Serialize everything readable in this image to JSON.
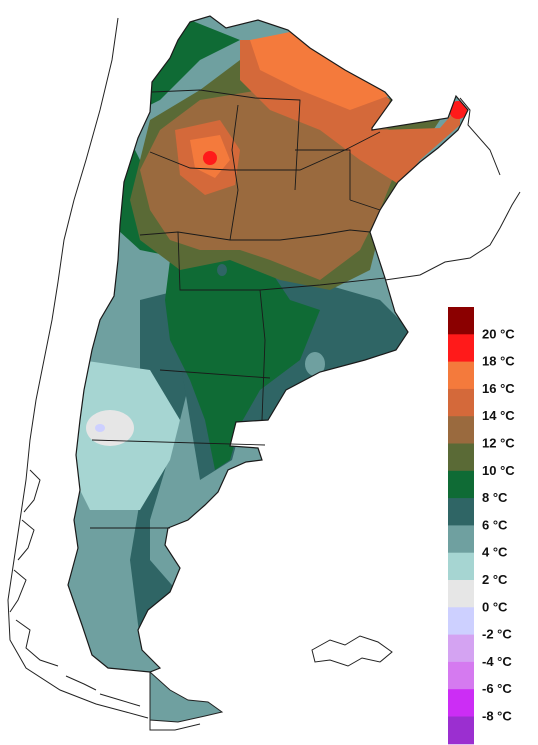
{
  "legend": {
    "items": [
      {
        "label": "20 °C",
        "color": "#8b0000"
      },
      {
        "label": "18 °C",
        "color": "#ff1a1a"
      },
      {
        "label": "16 °C",
        "color": "#f47a3c"
      },
      {
        "label": "14 °C",
        "color": "#d4693a"
      },
      {
        "label": "12 °C",
        "color": "#9a6a3e"
      },
      {
        "label": "10 °C",
        "color": "#5a6a36"
      },
      {
        "label": "8 °C",
        "color": "#0f6b35"
      },
      {
        "label": "6 °C",
        "color": "#2f6565"
      },
      {
        "label": "4 °C",
        "color": "#6fa0a0"
      },
      {
        "label": "2 °C",
        "color": "#a6d5d2"
      },
      {
        "label": "0 °C",
        "color": "#e6e6e6"
      },
      {
        "label": "-2 °C",
        "color": "#cdd0ff"
      },
      {
        "label": "-4 °C",
        "color": "#d4a3f2"
      },
      {
        "label": "-6 °C",
        "color": "#d57af0"
      },
      {
        "label": "-8 °C",
        "color": "#cc2df5"
      },
      {
        "label": "",
        "color": "#9b2fd0"
      }
    ]
  },
  "legend_extra_label": "-8 °C"
}
